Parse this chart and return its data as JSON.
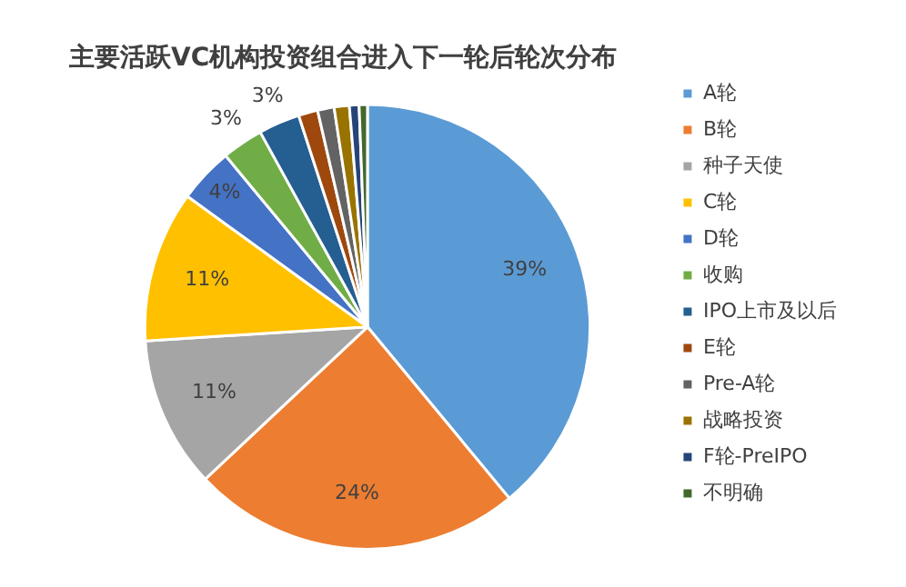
{
  "chart_data": {
    "type": "pie",
    "title": "主要活跃VC机构投资组合进入下一轮后轮次分布",
    "categories": [
      "A轮",
      "B轮",
      "种子天使",
      "C轮",
      "D轮",
      "收购",
      "IPO上市及以后",
      "E轮",
      "Pre-A轮",
      "战略投资",
      "F轮-PreIPO",
      "不明确"
    ],
    "values": [
      39,
      24,
      11,
      11,
      4,
      3,
      3,
      1.4,
      1.2,
      1.1,
      0.7,
      0.6
    ],
    "value_labels": [
      "39%",
      "24%",
      "11%",
      "11%",
      "4%",
      "3%",
      "3%",
      null,
      null,
      null,
      null,
      null
    ],
    "colors": [
      "#5b9bd5",
      "#ed7d31",
      "#a5a5a5",
      "#ffc000",
      "#4472c4",
      "#70ad47",
      "#255e91",
      "#9e480e",
      "#636363",
      "#997300",
      "#264478",
      "#43682b"
    ],
    "legend": "right"
  }
}
